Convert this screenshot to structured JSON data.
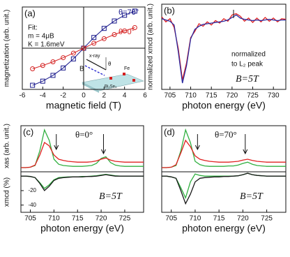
{
  "chart_data": [
    {
      "type": "scatter",
      "title": "(a)",
      "x_label": "magnetic field (T)",
      "y_label": "magnetization (arb. unit.)",
      "annotations": [
        "Fit:",
        "m = 4μB",
        "K = 1.6meV",
        "x-ray",
        "θ",
        "B",
        "Fe",
        "Bi₂Se₃"
      ],
      "x": [
        -5,
        -4,
        -3,
        -2,
        -1,
        0,
        1,
        2,
        3,
        4,
        5
      ],
      "series": [
        {
          "name": "θ=70°",
          "color": "#1a1a8c",
          "values": [
            -0.9,
            -0.8,
            -0.66,
            -0.48,
            -0.26,
            0,
            0.26,
            0.48,
            0.66,
            0.8,
            0.9
          ]
        },
        {
          "name": "θ=0°",
          "color": "#d42020",
          "values": [
            -0.5,
            -0.42,
            -0.33,
            -0.23,
            -0.12,
            0,
            0.12,
            0.23,
            0.33,
            0.42,
            0.5
          ]
        }
      ],
      "xlim": [
        -6,
        6
      ],
      "ylim": [
        -1,
        1
      ],
      "xticks": [
        -6,
        -4,
        -2,
        0,
        2,
        4,
        6
      ]
    },
    {
      "type": "line",
      "title": "(b)",
      "x_label": "photon energy (eV)",
      "y_label": "normalized xmcd (arb. unit.)",
      "annotations": [
        "normalized",
        "to L₂ peak",
        "B=5T"
      ],
      "x": [
        703,
        704,
        705,
        706,
        707,
        708,
        709,
        710,
        711,
        712,
        713,
        714,
        715,
        716,
        717,
        718,
        719,
        720,
        721,
        722,
        723,
        724,
        725,
        726,
        727,
        728,
        729,
        730,
        731,
        732,
        733
      ],
      "series": [
        {
          "color": "#e02020",
          "values": [
            0.05,
            -0.03,
            0.02,
            -0.12,
            -0.45,
            -0.95,
            -0.68,
            -0.28,
            -0.18,
            -0.06,
            -0.1,
            -0.03,
            -0.08,
            -0.01,
            -0.05,
            0.02,
            -0.02,
            0.08,
            0.1,
            0.06,
            -0.02,
            0.03,
            -0.04,
            0.03,
            -0.03,
            0.04,
            -0.02,
            0.03,
            -0.03,
            0.02,
            0.01
          ]
        },
        {
          "color": "#2a2aa0",
          "values": [
            0.02,
            0,
            -0.02,
            -0.08,
            -0.5,
            -1.0,
            -0.72,
            -0.3,
            -0.15,
            -0.1,
            -0.07,
            -0.06,
            -0.05,
            -0.04,
            -0.03,
            -0.02,
            0,
            0.04,
            0.08,
            0.03,
            0.01,
            0,
            -0.01,
            0,
            -0.01,
            0,
            0.01,
            0,
            -0.01,
            0,
            0
          ]
        }
      ],
      "xlim": [
        703,
        733
      ],
      "ylim": [
        -1.1,
        0.25
      ],
      "xticks": [
        705,
        710,
        715,
        720,
        725,
        730
      ]
    },
    {
      "type": "line",
      "title": "(c)",
      "subtitle": "θ=0°",
      "y_label": "xas (arb. unit.)",
      "x": [
        703,
        704,
        705,
        706,
        707,
        708,
        709,
        710,
        711,
        712,
        713,
        714,
        715,
        716,
        717,
        718,
        719,
        720,
        721,
        722,
        723,
        724,
        725,
        726,
        727,
        728,
        729
      ],
      "series": [
        {
          "color": "#30b040",
          "values": [
            0.1,
            0.1,
            0.11,
            0.15,
            0.5,
            1.0,
            0.75,
            0.3,
            0.18,
            0.15,
            0.14,
            0.13,
            0.13,
            0.13,
            0.14,
            0.15,
            0.2,
            0.32,
            0.36,
            0.22,
            0.16,
            0.14,
            0.13,
            0.13,
            0.13,
            0.13,
            0.13
          ]
        },
        {
          "color": "#e02020",
          "values": [
            0.1,
            0.1,
            0.11,
            0.16,
            0.4,
            0.7,
            0.62,
            0.4,
            0.3,
            0.27,
            0.25,
            0.24,
            0.23,
            0.23,
            0.23,
            0.24,
            0.26,
            0.3,
            0.33,
            0.28,
            0.25,
            0.24,
            0.23,
            0.23,
            0.23,
            0.23,
            0.23
          ]
        }
      ],
      "arrows": [
        710.5,
        720.5
      ],
      "xlim": [
        703,
        729
      ],
      "ylim": [
        0,
        1.1
      ]
    },
    {
      "type": "line",
      "x_label": "photon energy (eV)",
      "y_label": "xmcd (%)",
      "annotations": [
        "B=5T"
      ],
      "x": [
        703,
        704,
        705,
        706,
        707,
        708,
        709,
        710,
        711,
        712,
        713,
        714,
        715,
        716,
        717,
        718,
        719,
        720,
        721,
        722,
        723,
        724,
        725,
        726,
        727,
        728,
        729
      ],
      "series": [
        {
          "color": "#30b040",
          "values": [
            0,
            0,
            -0.5,
            -2,
            -9,
            -17,
            -12,
            -5,
            -2,
            -1.5,
            -1,
            -1,
            -1,
            -0.5,
            -0.5,
            0,
            0.5,
            1.5,
            2.5,
            1.5,
            0.5,
            0,
            0,
            0,
            0,
            0,
            0
          ]
        },
        {
          "color": "#1a1a1a",
          "values": [
            0,
            0,
            -0.5,
            -2,
            -10,
            -20,
            -14,
            -6,
            -3,
            -2,
            -1.5,
            -1,
            -1,
            -1,
            -0.5,
            -0.5,
            0,
            1,
            2,
            1,
            0,
            0,
            0,
            0,
            0,
            0,
            0
          ]
        }
      ],
      "xlim": [
        703,
        729
      ],
      "ylim": [
        -50,
        6
      ],
      "xticks": [
        705,
        710,
        715,
        720,
        725
      ],
      "yticks": [
        -20,
        -40
      ]
    },
    {
      "type": "line",
      "title": "(d)",
      "subtitle": "θ=70°",
      "x": [
        703,
        704,
        705,
        706,
        707,
        708,
        709,
        710,
        711,
        712,
        713,
        714,
        715,
        716,
        717,
        718,
        719,
        720,
        721,
        722,
        723,
        724,
        725,
        726,
        727,
        728,
        729
      ],
      "series": [
        {
          "color": "#30b040",
          "values": [
            0.1,
            0.1,
            0.11,
            0.15,
            0.5,
            1.0,
            0.7,
            0.25,
            0.17,
            0.14,
            0.13,
            0.13,
            0.13,
            0.13,
            0.14,
            0.14,
            0.16,
            0.2,
            0.23,
            0.18,
            0.15,
            0.14,
            0.13,
            0.13,
            0.13,
            0.13,
            0.13
          ]
        },
        {
          "color": "#e02020",
          "values": [
            0.1,
            0.1,
            0.11,
            0.17,
            0.45,
            0.75,
            0.6,
            0.38,
            0.3,
            0.27,
            0.25,
            0.24,
            0.23,
            0.23,
            0.23,
            0.24,
            0.25,
            0.28,
            0.3,
            0.27,
            0.25,
            0.24,
            0.23,
            0.23,
            0.23,
            0.23,
            0.23
          ]
        }
      ],
      "arrows": [
        710.5,
        720.5
      ],
      "xlim": [
        703,
        729
      ],
      "ylim": [
        0,
        1.1
      ]
    },
    {
      "type": "line",
      "x_label": "photon energy (eV)",
      "annotations": [
        "B=5T"
      ],
      "x": [
        703,
        704,
        705,
        706,
        707,
        708,
        709,
        710,
        711,
        712,
        713,
        714,
        715,
        716,
        717,
        718,
        719,
        720,
        721,
        722,
        723,
        724,
        725,
        726,
        727,
        728,
        729
      ],
      "series": [
        {
          "color": "#30b040",
          "values": [
            0,
            0,
            -1,
            -3,
            -16,
            -30,
            -8,
            3,
            1,
            0,
            0,
            0,
            0,
            0,
            0,
            0,
            0.5,
            2,
            4,
            2,
            1,
            0.5,
            0,
            0,
            0,
            0,
            0
          ]
        },
        {
          "color": "#1a1a1a",
          "values": [
            0,
            0,
            -1,
            -3,
            -20,
            -38,
            -25,
            -8,
            -3,
            -2,
            -1.5,
            -1,
            -1,
            -0.5,
            -0.5,
            0,
            0.5,
            2,
            4,
            2,
            1,
            0.5,
            0,
            0,
            0,
            0,
            0
          ]
        }
      ],
      "xlim": [
        703,
        729
      ],
      "ylim": [
        -50,
        6
      ],
      "xticks": [
        705,
        710,
        715,
        720,
        725
      ]
    }
  ]
}
